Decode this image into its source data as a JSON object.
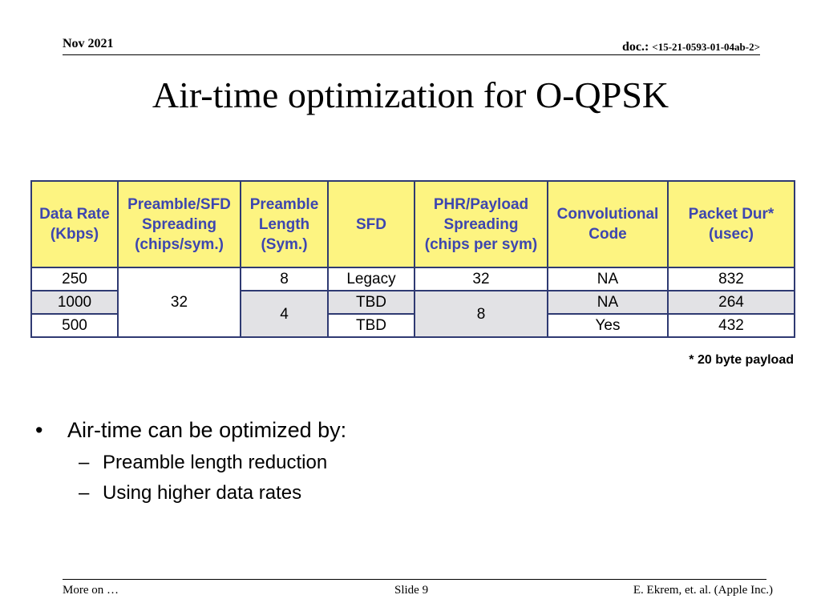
{
  "header": {
    "date": "Nov 2021",
    "doc_label": "doc.: ",
    "doc_number": "<15-21-0593-01-04ab-2>"
  },
  "title": "Air-time optimization for O-QPSK",
  "table": {
    "headers": [
      [
        "Data Rate",
        "(Kbps)"
      ],
      [
        "Preamble/SFD",
        "Spreading",
        "(chips/sym.)"
      ],
      [
        "Preamble",
        "Length",
        "(Sym.)"
      ],
      [
        "SFD"
      ],
      [
        "PHR/Payload",
        "Spreading",
        "(chips per sym)"
      ],
      [
        "Convolutional",
        "Code"
      ],
      [
        "Packet Dur*",
        "(usec)"
      ]
    ],
    "rows": [
      {
        "data_rate": "250",
        "preamble_spreading": "32",
        "preamble_length": "8",
        "sfd": "Legacy",
        "payload_spreading": "32",
        "conv_code": "NA",
        "packet_dur": "832"
      },
      {
        "data_rate": "1000",
        "preamble_length": "4",
        "sfd": "TBD",
        "payload_spreading": "8",
        "conv_code": "NA",
        "packet_dur": "264"
      },
      {
        "data_rate": "500",
        "sfd": "TBD",
        "conv_code": "Yes",
        "packet_dur": "432"
      }
    ],
    "colors": {
      "header_bg": "#fdf481",
      "header_text": "#3d46b0",
      "border": "#2f3a72",
      "grey_cell": "#e2e2e5"
    }
  },
  "note": "* 20 byte payload",
  "bullets": {
    "main": "Air-time can be optimized by:",
    "sub": [
      "Preamble length reduction",
      "Using higher data rates"
    ],
    "bullet_glyph": "•",
    "dash_glyph": "–"
  },
  "footer": {
    "left": "More on …",
    "center": "Slide 9",
    "right": "E. Ekrem, et. al. (Apple Inc.)"
  }
}
